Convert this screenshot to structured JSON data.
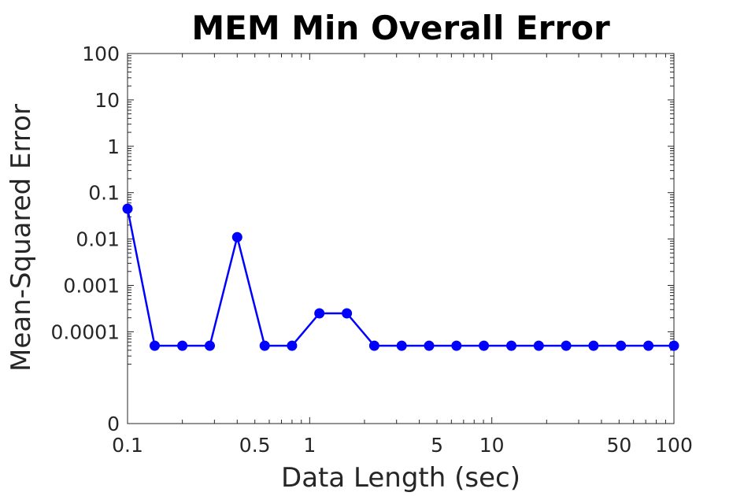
{
  "chart_data": {
    "type": "line",
    "title": "MEM Min Overall Error",
    "xlabel": "Data Length (sec)",
    "ylabel": "Mean-Squared Error",
    "x_scale": "log",
    "y_scale": "log",
    "xlim": [
      0.1,
      100
    ],
    "x_ticks": [
      {
        "value": 0.1,
        "label": "0.1"
      },
      {
        "value": 0.5,
        "label": "0.5"
      },
      {
        "value": 1,
        "label": "1"
      },
      {
        "value": 5,
        "label": "5"
      },
      {
        "value": 10,
        "label": "10"
      },
      {
        "value": 50,
        "label": "50"
      },
      {
        "value": 100,
        "label": "100"
      }
    ],
    "y_ticks": [
      {
        "value": 0,
        "label": "0"
      },
      {
        "value": 0.0001,
        "label": "0.0001"
      },
      {
        "value": 0.001,
        "label": "0.001"
      },
      {
        "value": 0.01,
        "label": "0.01"
      },
      {
        "value": 0.1,
        "label": "0.1"
      },
      {
        "value": 1,
        "label": "1"
      },
      {
        "value": 10,
        "label": "10"
      },
      {
        "value": 100,
        "label": "100"
      }
    ],
    "grid": false,
    "legend": "none",
    "series": [
      {
        "color": "#0000ff",
        "marker": "circle",
        "x": [
          0.1,
          0.141,
          0.2,
          0.283,
          0.4,
          0.566,
          0.8,
          1.131,
          1.6,
          2.263,
          3.2,
          4.525,
          6.4,
          9.051,
          12.8,
          18.1,
          25.6,
          36.2,
          51.2,
          72.4,
          100
        ],
        "y": [
          0.045,
          5e-05,
          5e-05,
          5e-05,
          0.011,
          5e-05,
          5e-05,
          0.00025,
          0.00025,
          5e-05,
          5e-05,
          5e-05,
          5e-05,
          5e-05,
          5e-05,
          5e-05,
          5e-05,
          5e-05,
          5e-05,
          5e-05,
          5e-05
        ]
      }
    ]
  }
}
